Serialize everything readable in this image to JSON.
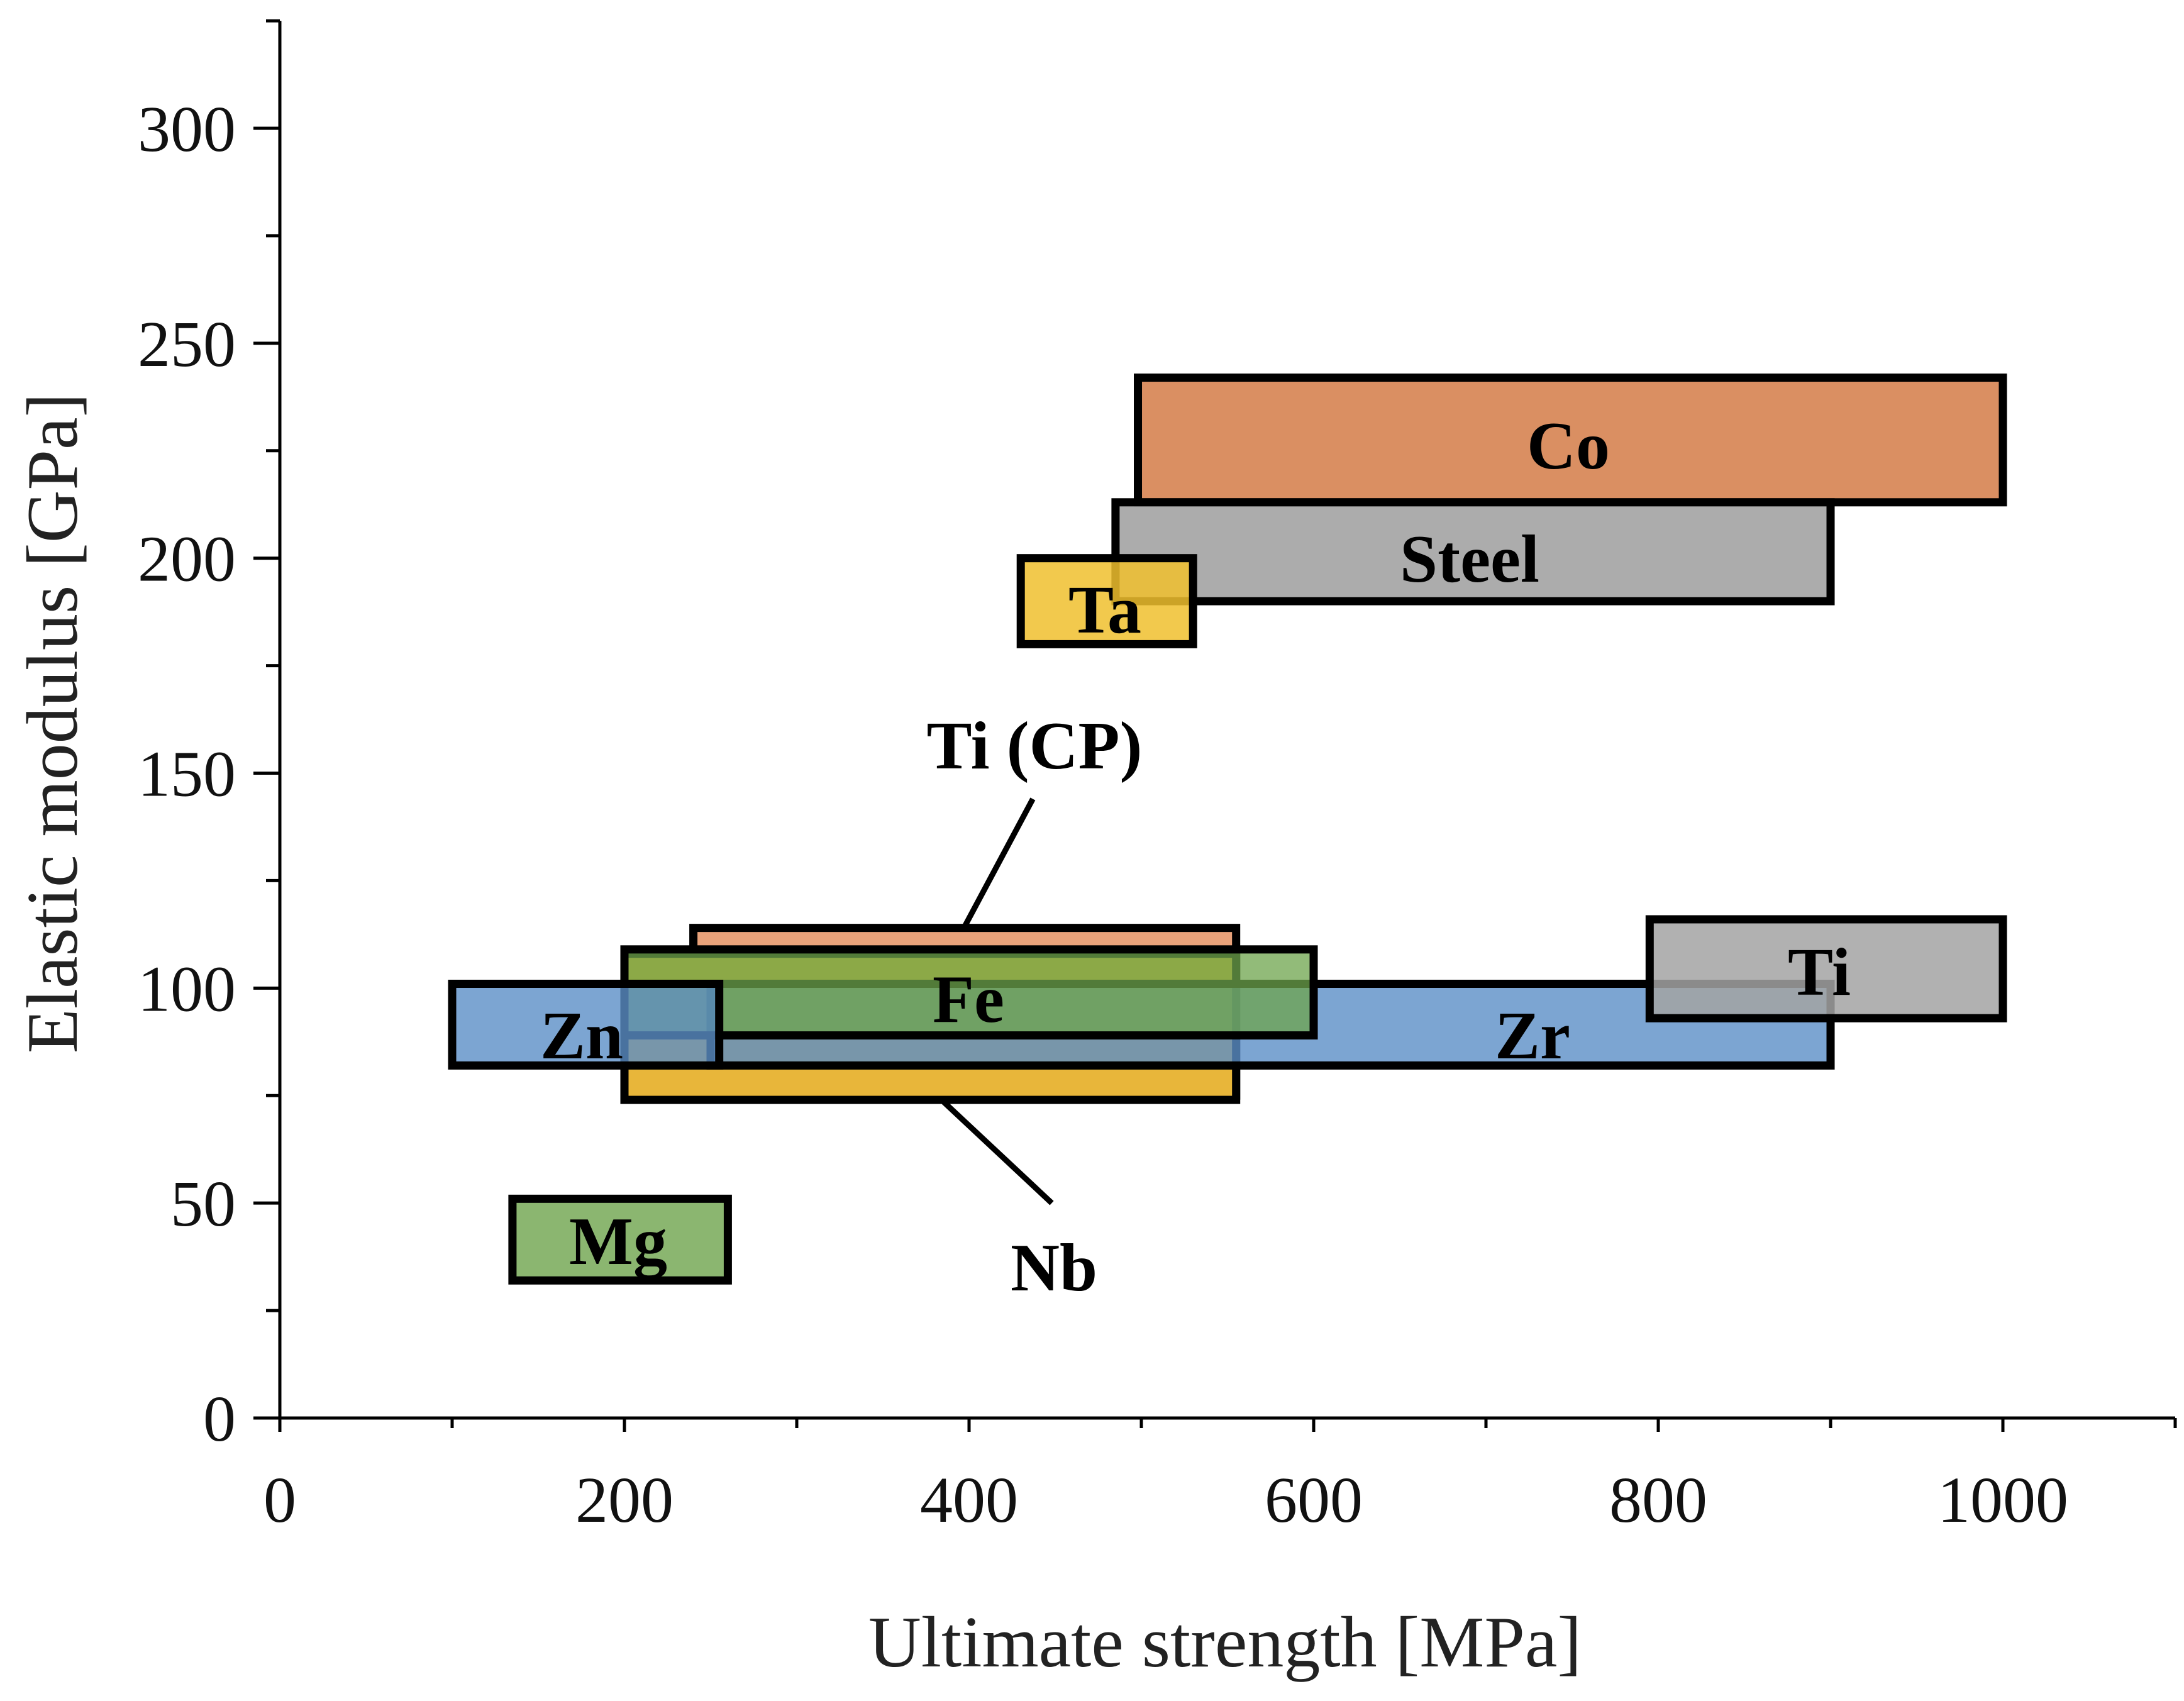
{
  "chart_data": {
    "type": "range-box",
    "xlabel": "Ultimate strength [MPa]",
    "ylabel": "Elastic modulus [GPa]",
    "xlim": [
      0,
      1100
    ],
    "ylim": [
      0,
      325
    ],
    "x_ticks": [
      0,
      200,
      400,
      600,
      800,
      1000
    ],
    "y_ticks": [
      0,
      50,
      100,
      150,
      200,
      250,
      300
    ],
    "regions": [
      {
        "name": "Ti (CP)",
        "x": [
          240,
          555
        ],
        "y": [
          75,
          114
        ],
        "color": "#e9a27a",
        "opacity": 1.0,
        "label": "Ti (CP)"
      },
      {
        "name": "Nb",
        "x": [
          200,
          555
        ],
        "y": [
          74,
          108
        ],
        "color": "#e8b63a",
        "opacity": 1.0,
        "label": "Nb"
      },
      {
        "name": "Zr",
        "x": [
          250,
          900
        ],
        "y": [
          82,
          101
        ],
        "color": "#5b8fc7",
        "opacity": 0.8,
        "label": "Zr"
      },
      {
        "name": "Fe",
        "x": [
          200,
          600
        ],
        "y": [
          89,
          109
        ],
        "color": "#6ea44c",
        "opacity": 0.75,
        "label": "Fe"
      },
      {
        "name": "Zn",
        "x": [
          100,
          255
        ],
        "y": [
          82,
          101
        ],
        "color": "#5b8fc7",
        "opacity": 0.8,
        "label": "Zn"
      },
      {
        "name": "Mg",
        "x": [
          135,
          260
        ],
        "y": [
          32,
          51
        ],
        "color": "#6ea44c",
        "opacity": 0.8,
        "label": "Mg"
      },
      {
        "name": "Ti",
        "x": [
          795,
          1000
        ],
        "y": [
          93,
          116
        ],
        "color": "#a3a3a3",
        "opacity": 0.85,
        "label": "Ti"
      },
      {
        "name": "Co",
        "x": [
          498,
          1000
        ],
        "y": [
          213,
          242
        ],
        "color": "#d8895a",
        "opacity": 0.95,
        "label": "Co"
      },
      {
        "name": "Steel",
        "x": [
          485,
          900
        ],
        "y": [
          190,
          213
        ],
        "color": "#a3a3a3",
        "opacity": 0.9,
        "label": "Steel"
      },
      {
        "name": "Ta",
        "x": [
          430,
          530
        ],
        "y": [
          180,
          200
        ],
        "color": "#f0c02e",
        "opacity": 0.85,
        "label": "Ta"
      }
    ],
    "annotations": [
      {
        "text": "Ti (CP)",
        "at": [
          437,
          156
        ],
        "pointer_from": [
          437,
          144
        ],
        "pointer_to": [
          397,
          114
        ]
      },
      {
        "text": "Nb",
        "at": [
          448,
          35
        ],
        "pointer_from": [
          448,
          50
        ],
        "pointer_to": [
          384,
          74
        ]
      }
    ]
  }
}
